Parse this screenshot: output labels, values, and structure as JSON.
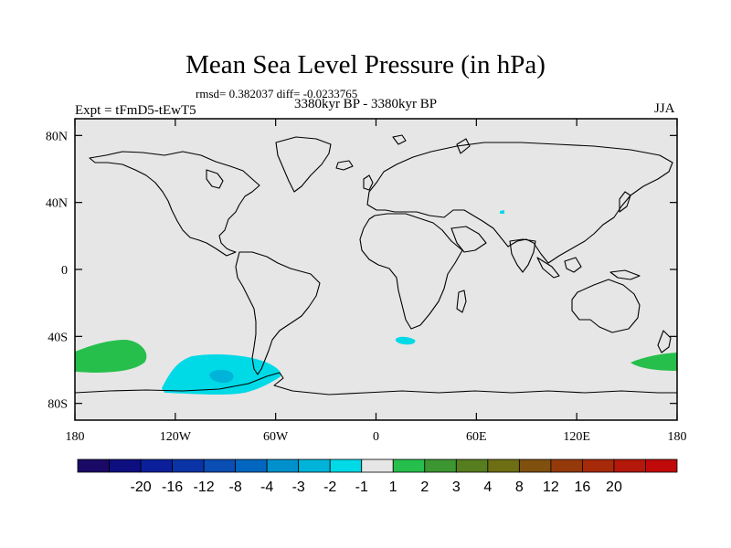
{
  "title": "Mean Sea Level Pressure (in hPa)",
  "stats": "rmsd= 0.382037 diff= -0.0233765",
  "experiment": "Expt = tFmD5-tEwT5",
  "period": "3380kyr BP - 3380kyr BP",
  "season": "JJA",
  "map": {
    "lon_range": [
      -180,
      180
    ],
    "lat_range": [
      -90,
      90
    ],
    "background_color": "#e6e6e6",
    "y_tick_labels": [
      "80N",
      "40N",
      "0",
      "40S",
      "80S"
    ],
    "y_tick_values": [
      80,
      40,
      0,
      -40,
      -80
    ],
    "x_tick_labels": [
      "180",
      "120W",
      "60W",
      "0",
      "60E",
      "120E",
      "180"
    ],
    "x_tick_values": [
      -180,
      -120,
      -60,
      0,
      60,
      120,
      180
    ]
  },
  "anomaly_regions": [
    {
      "label": "south-pacific-positive",
      "level": "1 to 2",
      "color": "#26bf4c"
    },
    {
      "label": "southern-ocean-negative-outer",
      "level": "-2 to -1",
      "color": "#00d9e6"
    },
    {
      "label": "southern-ocean-negative-core",
      "level": "-3 to -2",
      "color": "#00b3d9"
    },
    {
      "label": "south-atlantic-negative",
      "level": "-2 to -1",
      "color": "#00d9e6"
    },
    {
      "label": "central-asia-negative",
      "level": "-2 to -1",
      "color": "#00d9e6"
    },
    {
      "label": "tasman-positive",
      "level": "1 to 2",
      "color": "#26bf4c"
    }
  ],
  "colorbar": {
    "colors": [
      "#1a0a66",
      "#0d0f80",
      "#0a1f99",
      "#0a33a6",
      "#0a4db3",
      "#0066c0",
      "#0091cc",
      "#00b3d9",
      "#00d9e6",
      "#e6e6e6",
      "#26bf4c",
      "#3c9632",
      "#567d1e",
      "#6e6e14",
      "#80500f",
      "#943a0a",
      "#a62a0a",
      "#b3180a",
      "#c00a0a"
    ],
    "labels": [
      "-20",
      "-16",
      "-12",
      "-8",
      "-4",
      "-3",
      "-2",
      "-1",
      "1",
      "2",
      "3",
      "4",
      "8",
      "12",
      "16",
      "20"
    ]
  }
}
